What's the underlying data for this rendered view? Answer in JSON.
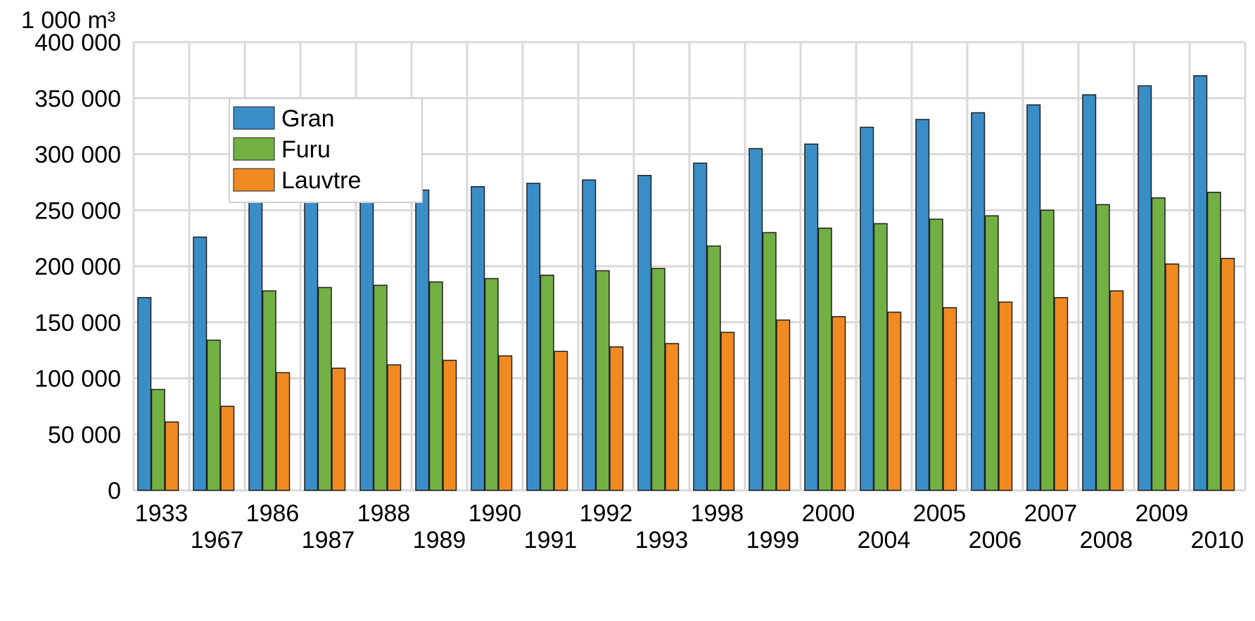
{
  "chart_data": {
    "type": "bar",
    "title": "",
    "ylabel": "1 000 m³",
    "xlabel": "",
    "ylim": [
      0,
      400000
    ],
    "yticks": [
      0,
      50000,
      100000,
      150000,
      200000,
      250000,
      300000,
      350000,
      400000
    ],
    "ytick_labels": [
      "0",
      "50 000",
      "100 000",
      "150 000",
      "200 000",
      "250 000",
      "300 000",
      "350 000",
      "400 000"
    ],
    "grid": true,
    "legend_position": "top-left",
    "categories": [
      "1933",
      "1967",
      "1986",
      "1987",
      "1988",
      "1989",
      "1990",
      "1991",
      "1992",
      "1993",
      "1998",
      "1999",
      "2000",
      "2004",
      "2005",
      "2006",
      "2007",
      "2008",
      "2009",
      "2010"
    ],
    "series": [
      {
        "name": "Gran",
        "color": "#3a8ec8",
        "values": [
          172000,
          226000,
          262000,
          264000,
          266000,
          268000,
          271000,
          274000,
          277000,
          281000,
          292000,
          305000,
          309000,
          324000,
          331000,
          337000,
          344000,
          353000,
          361000,
          370000
        ]
      },
      {
        "name": "Furu",
        "color": "#72b043",
        "values": [
          90000,
          134000,
          178000,
          181000,
          183000,
          186000,
          189000,
          192000,
          196000,
          198000,
          218000,
          230000,
          234000,
          238000,
          242000,
          245000,
          250000,
          255000,
          261000,
          266000
        ]
      },
      {
        "name": "Lauvtre",
        "color": "#f28a22",
        "values": [
          61000,
          75000,
          105000,
          109000,
          112000,
          116000,
          120000,
          124000,
          128000,
          131000,
          141000,
          152000,
          155000,
          159000,
          163000,
          168000,
          172000,
          178000,
          202000,
          207000
        ]
      }
    ]
  }
}
